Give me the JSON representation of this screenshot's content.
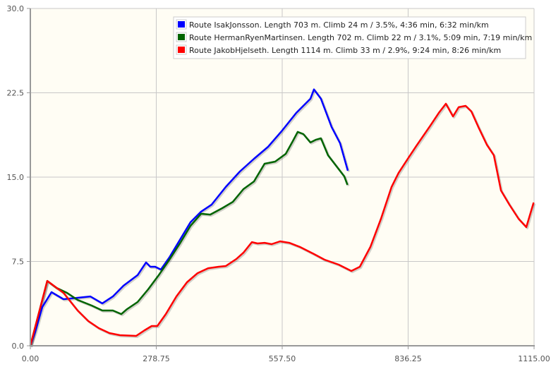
{
  "chart_data": {
    "type": "line",
    "title": "",
    "xlabel": "",
    "ylabel": "",
    "xlim": [
      0,
      1115
    ],
    "ylim": [
      0,
      30
    ],
    "grid": true,
    "legend_position": "top-right",
    "x_ticks": [
      "0.00",
      "278.75",
      "557.50",
      "836.25",
      "1115.00"
    ],
    "x_tick_values": [
      0,
      278.75,
      557.5,
      836.25,
      1115
    ],
    "y_ticks": [
      "0.0",
      "7.5",
      "15.0",
      "22.5",
      "30.0"
    ],
    "y_tick_values": [
      0,
      7.5,
      15,
      22.5,
      30
    ],
    "series": [
      {
        "name": "Route IsakJonsson. Length 703 m. Climb 24 m / 3.5%, 4:36 min, 6:32 min/km",
        "color": "#0000ff",
        "points": [
          [
            0,
            0
          ],
          [
            10.9,
            1.26
          ],
          [
            26.5,
            3.45
          ],
          [
            46.8,
            4.77
          ],
          [
            73.4,
            4.14
          ],
          [
            104.6,
            4.27
          ],
          [
            132.7,
            4.39
          ],
          [
            159.3,
            3.77
          ],
          [
            182.7,
            4.39
          ],
          [
            206.1,
            5.34
          ],
          [
            237.4,
            6.28
          ],
          [
            256.1,
            7.41
          ],
          [
            265.5,
            7.03
          ],
          [
            276.4,
            7.03
          ],
          [
            288.9,
            6.78
          ],
          [
            307.6,
            7.85
          ],
          [
            331,
            9.42
          ],
          [
            354.5,
            10.99
          ],
          [
            377.9,
            11.93
          ],
          [
            401.3,
            12.56
          ],
          [
            432.5,
            14.13
          ],
          [
            463.8,
            15.5
          ],
          [
            495,
            16.63
          ],
          [
            526.2,
            17.7
          ],
          [
            557.5,
            19.15
          ],
          [
            588.7,
            20.72
          ],
          [
            619.9,
            21.97
          ],
          [
            627.7,
            22.8
          ],
          [
            643.3,
            21.97
          ],
          [
            666.8,
            19.46
          ],
          [
            685.5,
            18.02
          ],
          [
            702.7,
            15.57
          ]
        ]
      },
      {
        "name": "Route HermanRyenMartinsen. Length 702 m. Climb 22 m / 3.1%, 5:09 min, 7:19 min/km",
        "color": "#006400",
        "points": [
          [
            0,
            0
          ],
          [
            37.5,
            5.77
          ],
          [
            57.8,
            5.15
          ],
          [
            81.2,
            4.71
          ],
          [
            104.6,
            4.08
          ],
          [
            135.9,
            3.58
          ],
          [
            159.3,
            3.14
          ],
          [
            182.7,
            3.14
          ],
          [
            201.4,
            2.82
          ],
          [
            213.9,
            3.26
          ],
          [
            237.4,
            3.89
          ],
          [
            260.8,
            5.02
          ],
          [
            284.2,
            6.28
          ],
          [
            307.6,
            7.66
          ],
          [
            331,
            9.1
          ],
          [
            354.5,
            10.67
          ],
          [
            377.9,
            11.74
          ],
          [
            398.2,
            11.67
          ],
          [
            424.8,
            12.24
          ],
          [
            448.2,
            12.8
          ],
          [
            471.6,
            13.93
          ],
          [
            495,
            14.62
          ],
          [
            518.5,
            16.19
          ],
          [
            541.9,
            16.38
          ],
          [
            565.3,
            17.07
          ],
          [
            580.9,
            18.2
          ],
          [
            591.8,
            19.02
          ],
          [
            604.3,
            18.83
          ],
          [
            619.9,
            18.08
          ],
          [
            632.4,
            18.33
          ],
          [
            643.3,
            18.45
          ],
          [
            659,
            16.94
          ],
          [
            679.3,
            15.88
          ],
          [
            694.9,
            15.06
          ],
          [
            702,
            14.31
          ]
        ]
      },
      {
        "name": "Route JakobHjelseth. Length 1114 m. Climb 33 m / 2.9%, 9:24 min, 8:26 min/km",
        "color": "#ff0000",
        "points": [
          [
            0,
            0
          ],
          [
            37.5,
            5.77
          ],
          [
            73.4,
            4.71
          ],
          [
            104.6,
            3.14
          ],
          [
            128,
            2.2
          ],
          [
            151.5,
            1.57
          ],
          [
            174.9,
            1.13
          ],
          [
            198.3,
            0.94
          ],
          [
            234.2,
            0.88
          ],
          [
            253,
            1.38
          ],
          [
            268.6,
            1.76
          ],
          [
            281.1,
            1.76
          ],
          [
            299.8,
            2.82
          ],
          [
            323.3,
            4.39
          ],
          [
            346.7,
            5.65
          ],
          [
            370.1,
            6.46
          ],
          [
            393.5,
            6.9
          ],
          [
            416.9,
            7.03
          ],
          [
            432.6,
            7.09
          ],
          [
            456,
            7.72
          ],
          [
            471.6,
            8.28
          ],
          [
            490.3,
            9.22
          ],
          [
            502.8,
            9.1
          ],
          [
            518.5,
            9.16
          ],
          [
            534.1,
            9.04
          ],
          [
            552.8,
            9.29
          ],
          [
            573.1,
            9.16
          ],
          [
            596.5,
            8.79
          ],
          [
            627.8,
            8.16
          ],
          [
            651.2,
            7.66
          ],
          [
            682.4,
            7.22
          ],
          [
            710.5,
            6.65
          ],
          [
            729.3,
            7.03
          ],
          [
            752.7,
            8.79
          ],
          [
            776.1,
            11.3
          ],
          [
            799.5,
            14.13
          ],
          [
            815.2,
            15.38
          ],
          [
            835.5,
            16.63
          ],
          [
            854.2,
            17.77
          ],
          [
            885.5,
            19.59
          ],
          [
            904.2,
            20.72
          ],
          [
            919.8,
            21.53
          ],
          [
            935.5,
            20.4
          ],
          [
            948,
            21.22
          ],
          [
            963.6,
            21.34
          ],
          [
            976.1,
            20.84
          ],
          [
            991.7,
            19.46
          ],
          [
            1010.4,
            17.89
          ],
          [
            1026,
            16.94
          ],
          [
            1041.7,
            13.81
          ],
          [
            1060.4,
            12.55
          ],
          [
            1080.7,
            11.3
          ],
          [
            1097.9,
            10.55
          ],
          [
            1114,
            12.74
          ]
        ]
      }
    ]
  }
}
